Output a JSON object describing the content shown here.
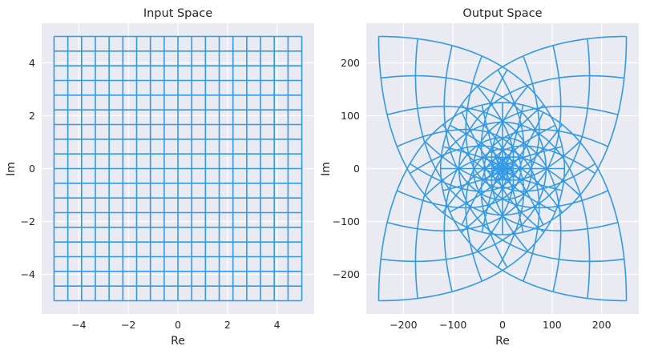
{
  "chart_data": [
    {
      "type": "line",
      "title": "Input Space",
      "xlabel": "Re",
      "ylabel": "Im",
      "xlim": [
        -5.5,
        5.5
      ],
      "ylim": [
        -5.5,
        5.5
      ],
      "xticks": [
        -4,
        -2,
        0,
        2,
        4
      ],
      "yticks": [
        -4,
        -2,
        0,
        2,
        4
      ],
      "xtick_labels": [
        "−4",
        "−2",
        "0",
        "2",
        "4"
      ],
      "ytick_labels": [
        "−4",
        "−2",
        "0",
        "2",
        "4"
      ],
      "grid": true,
      "grid_range": [
        -5,
        5
      ],
      "grid_line_count": 19,
      "mapping": "identity",
      "line_color": "#3399e6"
    },
    {
      "type": "line",
      "title": "Output Space",
      "xlabel": "Re",
      "ylabel": "Im",
      "xlim": [
        -275,
        275
      ],
      "ylim": [
        -275,
        275
      ],
      "xticks": [
        -200,
        -100,
        0,
        100,
        200
      ],
      "yticks": [
        -200,
        -100,
        0,
        100,
        200
      ],
      "xtick_labels": [
        "−200",
        "−100",
        "0",
        "100",
        "200"
      ],
      "ytick_labels": [
        "−200",
        "−100",
        "0",
        "100",
        "200"
      ],
      "grid": true,
      "grid_range": [
        -5,
        5
      ],
      "grid_line_count": 19,
      "mapping": "z^2 * conj(z)^? -> rotated cubic (u = x^3 - 3xy^2 scaled)",
      "line_color": "#3399e6"
    }
  ],
  "style": {
    "axes_background": "#eaeaf2",
    "gridline": "#ffffff",
    "text": "#262626"
  }
}
